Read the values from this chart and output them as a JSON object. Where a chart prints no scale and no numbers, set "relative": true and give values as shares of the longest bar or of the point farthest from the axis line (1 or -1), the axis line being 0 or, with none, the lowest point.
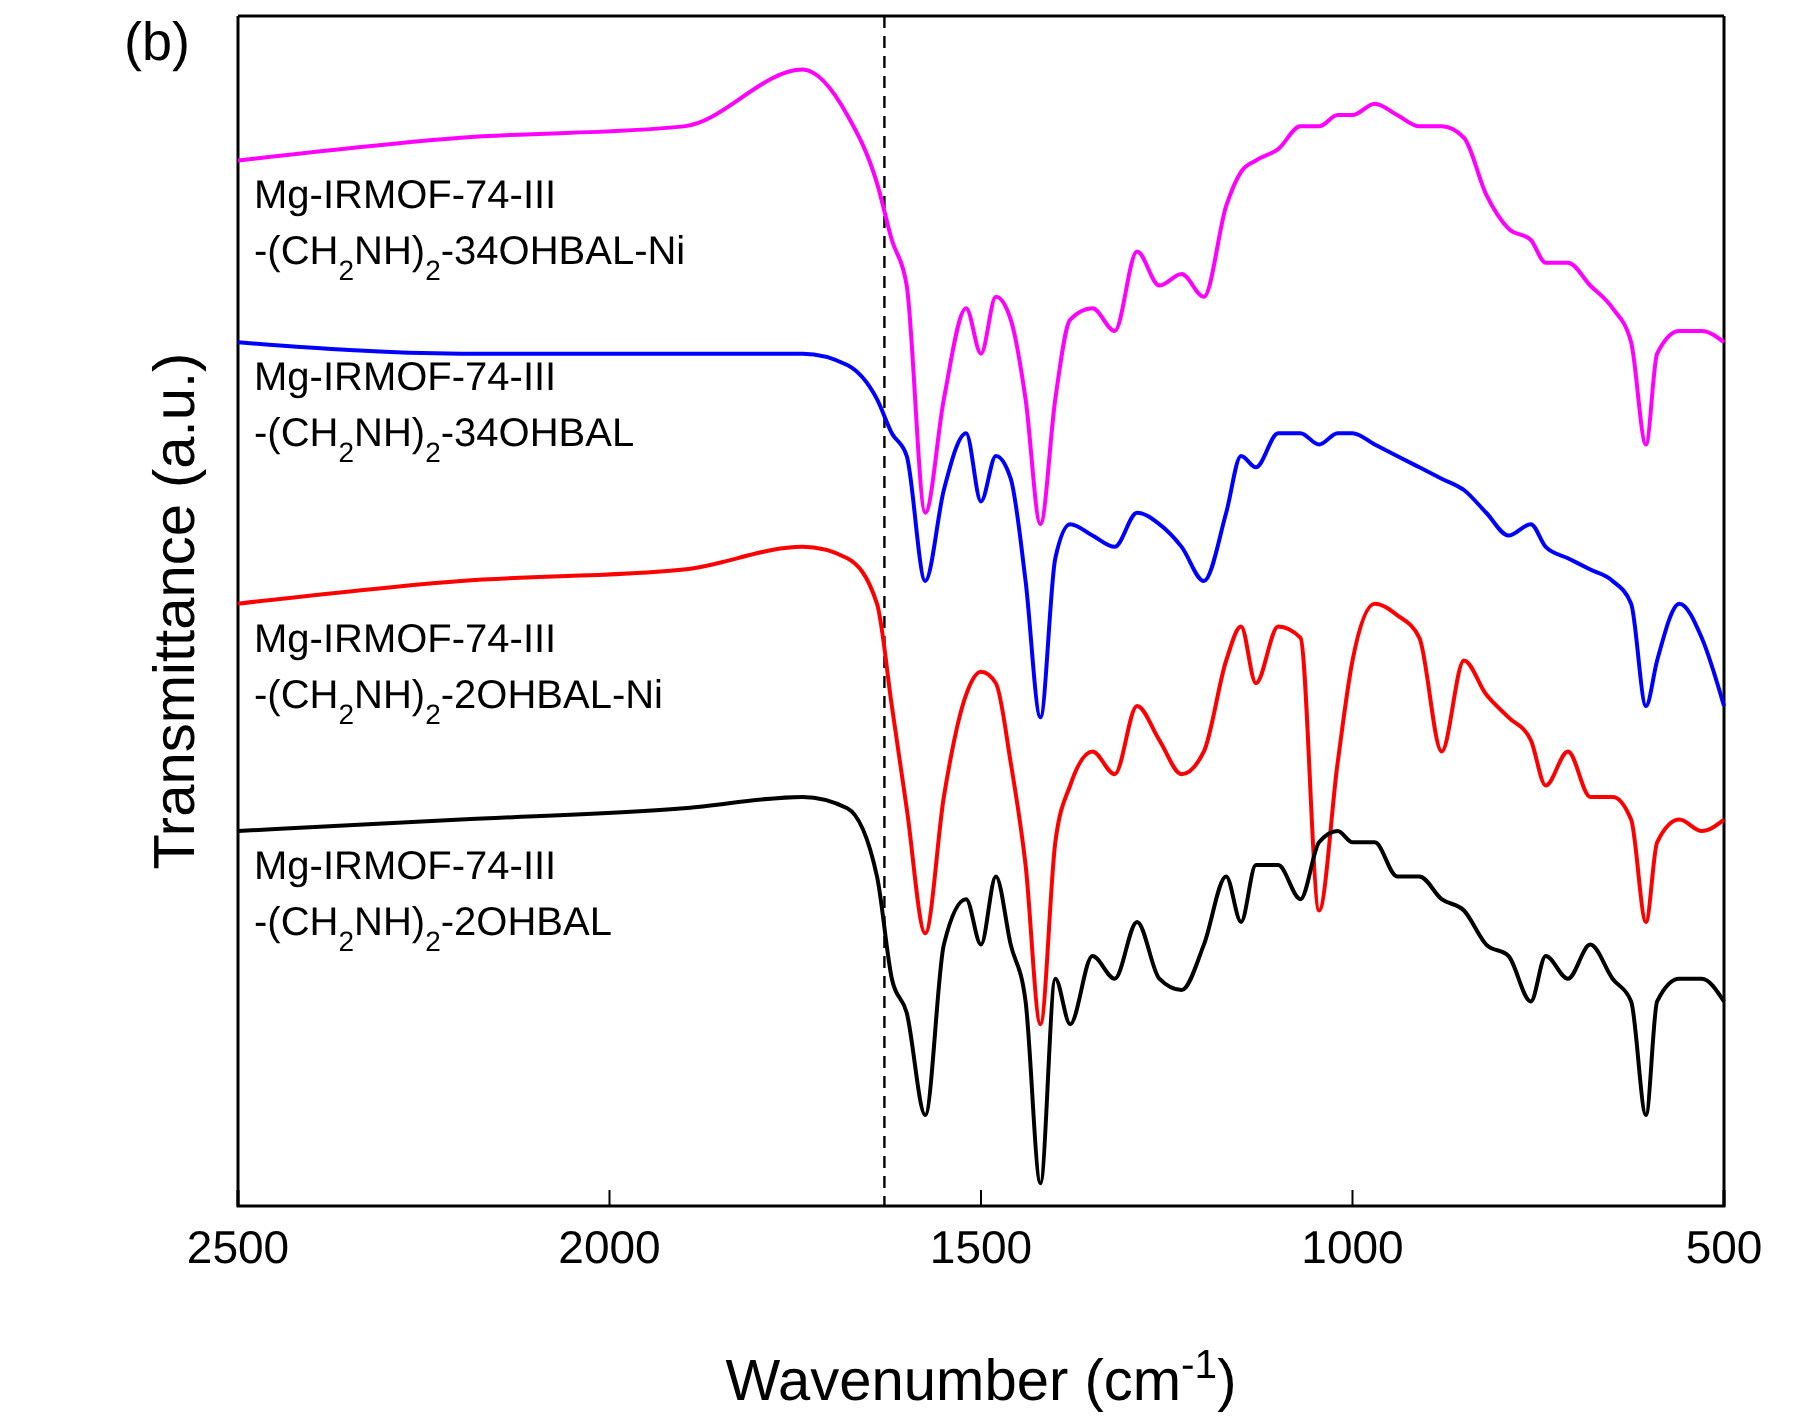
{
  "chart_data": {
    "type": "line",
    "relative": true,
    "xlabel": "Wavenumber (cm$^{-1}$)",
    "ylabel": "Transmittance (a.u.)",
    "xlim": [
      2500,
      500
    ],
    "xticks": [
      2500,
      2000,
      1500,
      1000,
      500
    ],
    "tick_labels": "x",
    "grid": false,
    "marker": "none",
    "line_style": "solid",
    "annotations": [
      "(b)"
    ],
    "ref_lines": [
      {
        "axis": "x",
        "value": 1630,
        "label": null,
        "color": "#000000",
        "line_style": "dashed"
      }
    ],
    "x": [
      2500,
      2200,
      1900,
      1740,
      1680,
      1640,
      1620,
      1600,
      1575,
      1550,
      1520,
      1500,
      1480,
      1460,
      1440,
      1420,
      1400,
      1380,
      1350,
      1320,
      1290,
      1260,
      1230,
      1200,
      1170,
      1150,
      1130,
      1100,
      1070,
      1045,
      1020,
      1000,
      970,
      940,
      910,
      880,
      850,
      820,
      790,
      760,
      740,
      710,
      680,
      650,
      625,
      605,
      590,
      560,
      530,
      500
    ],
    "series": [
      {
        "name": "Mg-IRMOF-74-III\n-(CH$_{2}$NH)$_{2}$-34OHBAL-Ni",
        "color": "#ff00ff",
        "values": [
          0.92,
          0.94,
          0.95,
          1.0,
          0.96,
          0.9,
          0.85,
          0.81,
          0.61,
          0.71,
          0.79,
          0.75,
          0.8,
          0.78,
          0.71,
          0.6,
          0.71,
          0.78,
          0.79,
          0.77,
          0.84,
          0.81,
          0.82,
          0.8,
          0.88,
          0.91,
          0.92,
          0.93,
          0.95,
          0.95,
          0.96,
          0.96,
          0.97,
          0.96,
          0.95,
          0.95,
          0.94,
          0.89,
          0.86,
          0.85,
          0.83,
          0.83,
          0.81,
          0.79,
          0.76,
          0.67,
          0.75,
          0.77,
          0.77,
          0.76
        ]
      },
      {
        "name": "Mg-IRMOF-74-III\n-(CH$_{2}$NH)$_{2}$-34OHBAL",
        "color": "#0000ff",
        "values": [
          0.76,
          0.75,
          0.75,
          0.75,
          0.74,
          0.71,
          0.68,
          0.66,
          0.55,
          0.63,
          0.68,
          0.62,
          0.66,
          0.64,
          0.55,
          0.43,
          0.57,
          0.6,
          0.59,
          0.58,
          0.61,
          0.6,
          0.58,
          0.55,
          0.61,
          0.66,
          0.65,
          0.68,
          0.68,
          0.67,
          0.68,
          0.68,
          0.67,
          0.66,
          0.65,
          0.64,
          0.63,
          0.61,
          0.59,
          0.6,
          0.58,
          0.57,
          0.56,
          0.55,
          0.53,
          0.44,
          0.48,
          0.53,
          0.5,
          0.44
        ]
      },
      {
        "name": "Mg-IRMOF-74-III\n-(CH$_{2}$NH)$_{2}$-2OHBAL-Ni",
        "color": "#ff0000",
        "values": [
          0.53,
          0.55,
          0.56,
          0.58,
          0.57,
          0.53,
          0.44,
          0.35,
          0.24,
          0.36,
          0.45,
          0.47,
          0.46,
          0.39,
          0.3,
          0.16,
          0.32,
          0.37,
          0.4,
          0.38,
          0.44,
          0.41,
          0.38,
          0.4,
          0.48,
          0.51,
          0.46,
          0.51,
          0.5,
          0.26,
          0.39,
          0.48,
          0.53,
          0.52,
          0.5,
          0.4,
          0.48,
          0.45,
          0.43,
          0.41,
          0.37,
          0.4,
          0.36,
          0.36,
          0.34,
          0.25,
          0.32,
          0.34,
          0.33,
          0.34
        ]
      },
      {
        "name": "Mg-IRMOF-74-III\n-(CH$_{2}$NH)$_{2}$-2OHBAL",
        "color": "#000000",
        "values": [
          0.33,
          0.34,
          0.35,
          0.36,
          0.35,
          0.29,
          0.2,
          0.17,
          0.08,
          0.23,
          0.27,
          0.23,
          0.29,
          0.23,
          0.18,
          0.02,
          0.2,
          0.16,
          0.22,
          0.2,
          0.25,
          0.2,
          0.19,
          0.23,
          0.29,
          0.25,
          0.3,
          0.3,
          0.27,
          0.32,
          0.33,
          0.32,
          0.32,
          0.29,
          0.29,
          0.27,
          0.26,
          0.23,
          0.22,
          0.18,
          0.22,
          0.2,
          0.23,
          0.2,
          0.18,
          0.08,
          0.18,
          0.2,
          0.2,
          0.18
        ]
      }
    ]
  }
}
